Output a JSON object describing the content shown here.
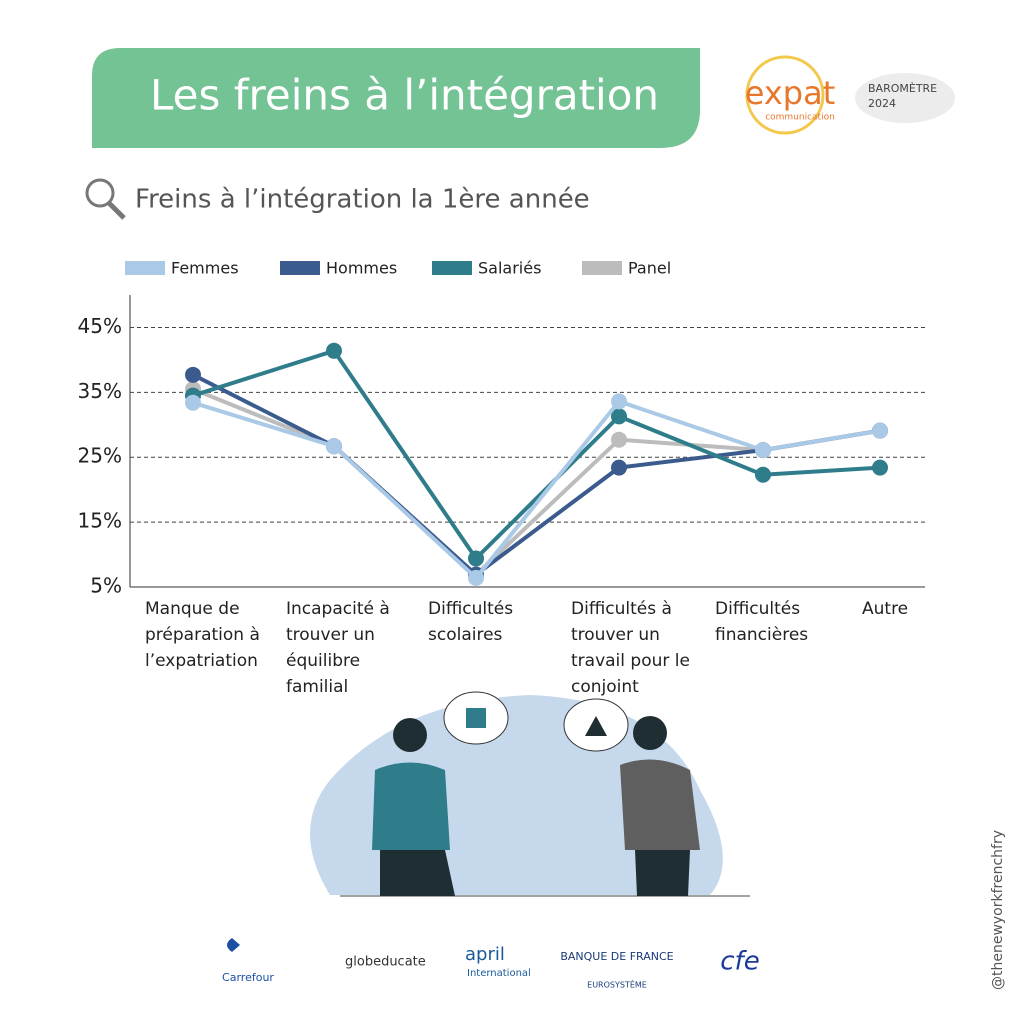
{
  "header": {
    "title": "Les freins à l’intégration",
    "logo_name": "expat",
    "logo_sub": "communication",
    "barometer": "BAROMÈTRE",
    "year": "2024"
  },
  "chart_data": {
    "type": "line",
    "title": "Freins à l’intégration la 1ère année",
    "categories": [
      "Manque de préparation à l’expatriation",
      "Incapacité à trouver un équilibre familial",
      "Difficultés scolaires",
      "Difficultés à trouver un travail pour le conjoint",
      "Difficultés financières",
      "Autre"
    ],
    "series": [
      {
        "name": "Femmes",
        "color": "#a9c9e6",
        "values": [
          33.4,
          26.7,
          6.4,
          33.6,
          26.1,
          29.1
        ]
      },
      {
        "name": "Hommes",
        "color": "#3b5b8e",
        "values": [
          37.7,
          26.7,
          6.9,
          23.4,
          26.1,
          29.1
        ]
      },
      {
        "name": "Salariés",
        "color": "#2f7c8b",
        "values": [
          34.5,
          41.4,
          9.4,
          31.3,
          22.3,
          23.4
        ]
      },
      {
        "name": "Panel",
        "color": "#bcbcbc",
        "values": [
          35.5,
          26.7,
          6.9,
          27.7,
          26.1,
          29.1
        ]
      }
    ],
    "ylim": [
      5,
      50
    ],
    "yticks": [
      {
        "value": 5,
        "label": "5%"
      },
      {
        "value": 15,
        "label": "15%"
      },
      {
        "value": 25,
        "label": "25%"
      },
      {
        "value": 35,
        "label": "35%"
      },
      {
        "value": 45,
        "label": "45%"
      }
    ],
    "grid": true
  },
  "sponsors": [
    "Carrefour",
    "globeducate",
    "april",
    "International",
    "BANQUE DE FRANCE",
    "EUROSYSTÈME",
    "cfe"
  ],
  "credit": "@thenewyorkfrenchfry"
}
